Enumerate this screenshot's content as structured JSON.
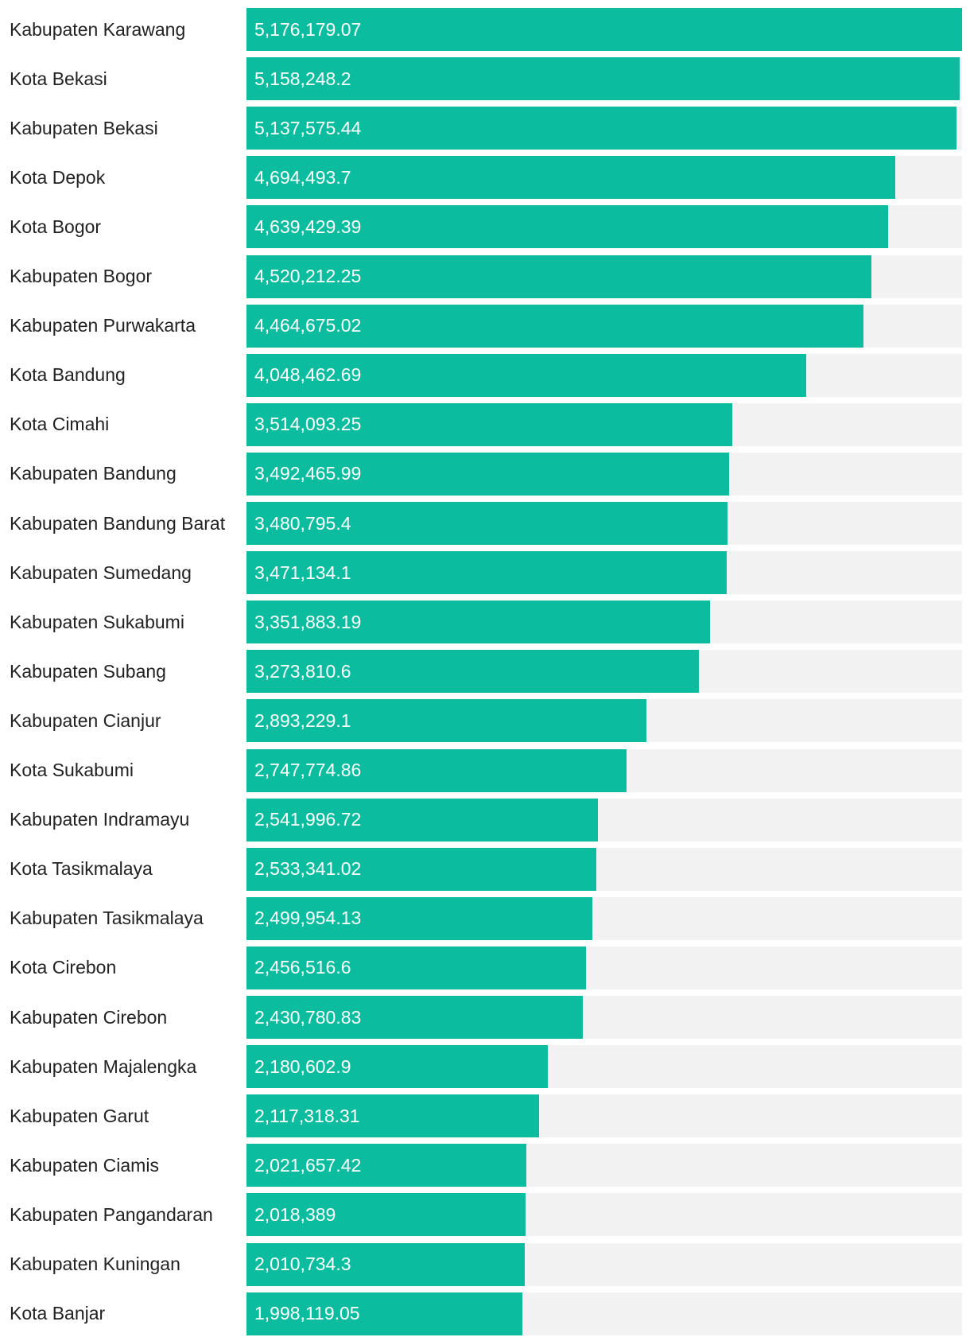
{
  "chart_data": {
    "type": "bar",
    "orientation": "horizontal",
    "title": "",
    "xlabel": "",
    "ylabel": "",
    "xlim": [
      0,
      5176179.07
    ],
    "grid": false,
    "legend": "none",
    "colors": {
      "bar": "#0bbc9f",
      "track": "#f2f2f2",
      "label": "#222222",
      "value_text": "#ffffff"
    },
    "categories": [
      "Kabupaten Karawang",
      "Kota Bekasi",
      "Kabupaten Bekasi",
      "Kota Depok",
      "Kota Bogor",
      "Kabupaten Bogor",
      "Kabupaten Purwakarta",
      "Kota Bandung",
      "Kota Cimahi",
      "Kabupaten Bandung",
      "Kabupaten Bandung Barat",
      "Kabupaten Sumedang",
      "Kabupaten Sukabumi",
      "Kabupaten Subang",
      "Kabupaten Cianjur",
      "Kota Sukabumi",
      "Kabupaten Indramayu",
      "Kota Tasikmalaya",
      "Kabupaten Tasikmalaya",
      "Kota Cirebon",
      "Kabupaten Cirebon",
      "Kabupaten Majalengka",
      "Kabupaten Garut",
      "Kabupaten Ciamis",
      "Kabupaten Pangandaran",
      "Kabupaten Kuningan",
      "Kota Banjar"
    ],
    "values": [
      5176179.07,
      5158248.2,
      5137575.44,
      4694493.7,
      4639429.39,
      4520212.25,
      4464675.02,
      4048462.69,
      3514093.25,
      3492465.99,
      3480795.4,
      3471134.1,
      3351883.19,
      3273810.6,
      2893229.1,
      2747774.86,
      2541996.72,
      2533341.02,
      2499954.13,
      2456516.6,
      2430780.83,
      2180602.9,
      2117318.31,
      2021657.42,
      2018389,
      2010734.3,
      1998119.05
    ],
    "value_labels": [
      "5,176,179.07",
      "5,158,248.2",
      "5,137,575.44",
      "4,694,493.7",
      "4,639,429.39",
      "4,520,212.25",
      "4,464,675.02",
      "4,048,462.69",
      "3,514,093.25",
      "3,492,465.99",
      "3,480,795.4",
      "3,471,134.1",
      "3,351,883.19",
      "3,273,810.6",
      "2,893,229.1",
      "2,747,774.86",
      "2,541,996.72",
      "2,533,341.02",
      "2,499,954.13",
      "2,456,516.6",
      "2,430,780.83",
      "2,180,602.9",
      "2,117,318.31",
      "2,021,657.42",
      "2,018,389",
      "2,010,734.3",
      "1,998,119.05"
    ]
  }
}
